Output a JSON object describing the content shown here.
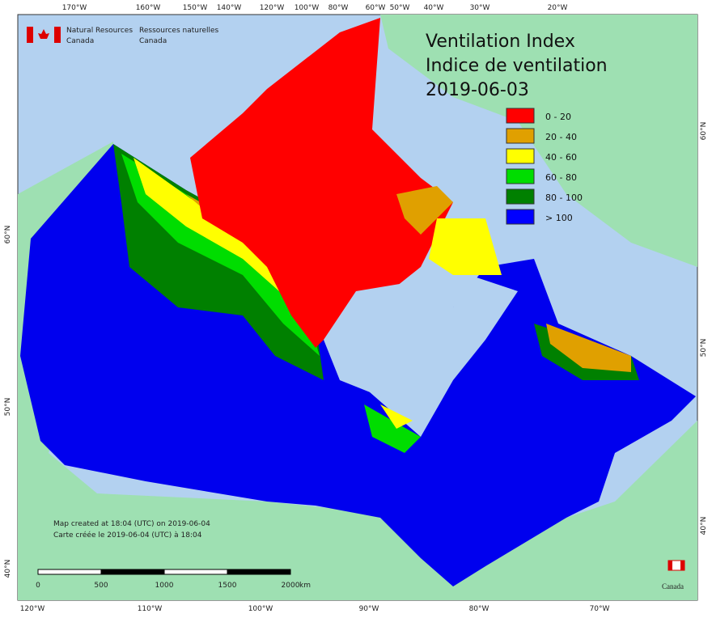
{
  "agency": {
    "en_line1": "Natural Resources",
    "en_line2": "Canada",
    "fr_line1": "Ressources naturelles",
    "fr_line2": "Canada"
  },
  "title": {
    "en": "Ventilation Index",
    "fr": "Indice de ventilation",
    "date": "2019-06-03"
  },
  "legend": [
    {
      "label": "0 - 20",
      "color": "#ff0000"
    },
    {
      "label": "20 - 40",
      "color": "#e0a000"
    },
    {
      "label": "40 - 60",
      "color": "#ffff00"
    },
    {
      "label": "60 - 80",
      "color": "#00dd00"
    },
    {
      "label": "80 - 100",
      "color": "#008000"
    },
    {
      "label": "> 100",
      "color": "#0000ff"
    }
  ],
  "graticule": {
    "top": [
      "170°W",
      "160°W",
      "150°W",
      "140°W",
      "120°W",
      "100°W",
      "80°W",
      "60°W",
      "50°W",
      "40°W",
      "30°W",
      "20°W"
    ],
    "bottom": [
      "120°W",
      "110°W",
      "100°W",
      "90°W",
      "80°W",
      "70°W"
    ],
    "left": [
      "60°N",
      "50°N",
      "40°N"
    ],
    "right": [
      "60°N",
      "50°N",
      "40°N"
    ]
  },
  "notes": [
    "Map created at 18:04 (UTC) on 2019-06-04",
    "Carte créée le 2019-06-04 (UTC) à 18:04"
  ],
  "scale_bar": {
    "ticks": [
      "0",
      "500",
      "1000",
      "1500",
      "2000"
    ],
    "unit": "km"
  },
  "wordmark": "Canada"
}
